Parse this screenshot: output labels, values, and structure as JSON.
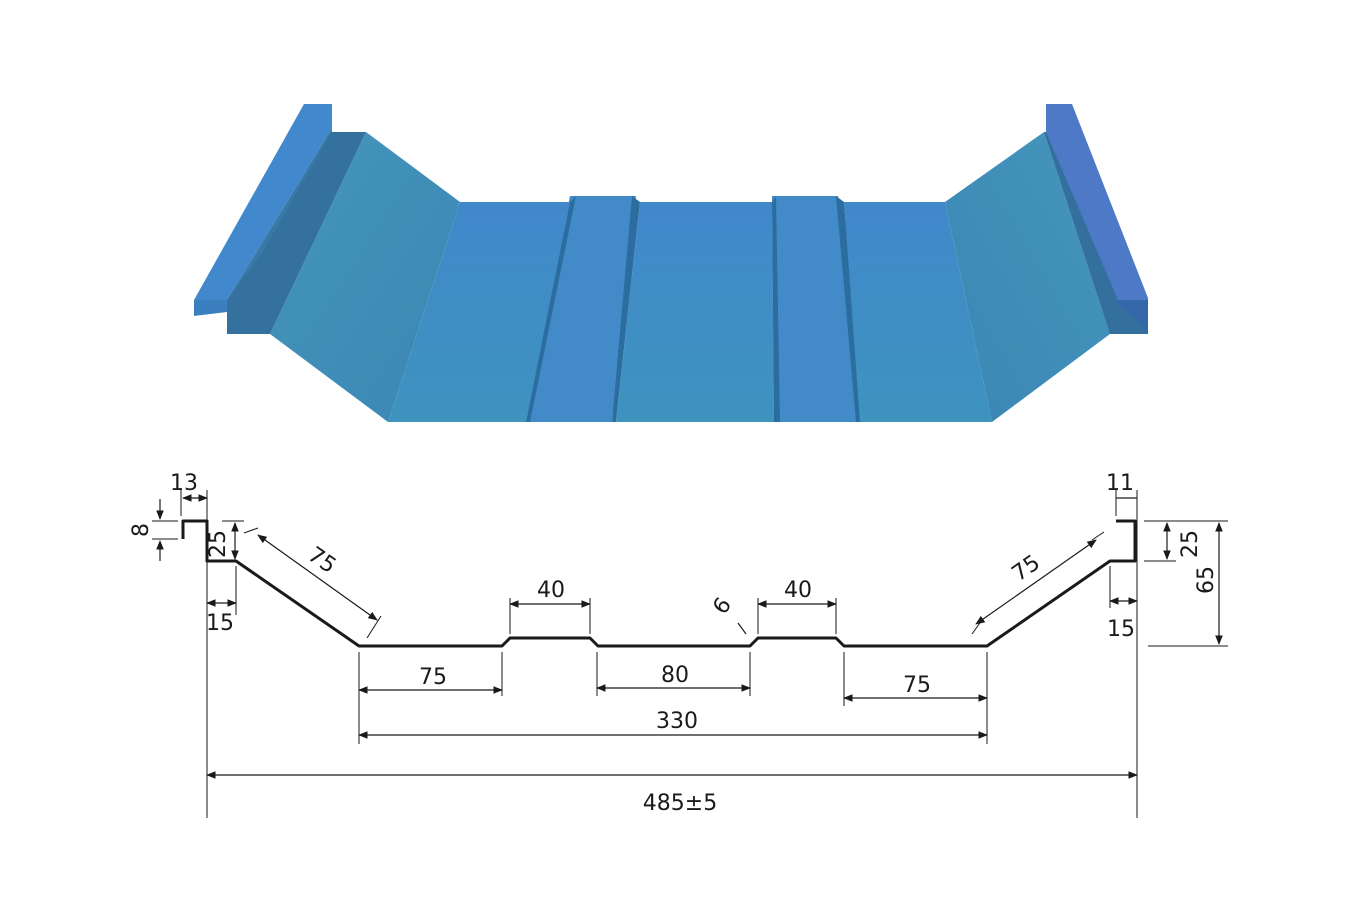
{
  "colors": {
    "panel_light": "#4189c9",
    "panel_mid": "#3f8fc0",
    "panel_dark": "#2d6a96",
    "line": "#1a1a1a",
    "background": "#ffffff"
  },
  "dimensions": {
    "top_lip_width": "13",
    "left_lip_height": "8",
    "left_rib_height": "25",
    "left_flange": "15",
    "left_slope": "75",
    "stiffener_top_left": "40",
    "stiffener_depth": "6",
    "stiffener_top_right": "40",
    "pan_left": "75",
    "pan_center": "80",
    "pan_right": "75",
    "pan_total": "330",
    "overall_width": "485±5",
    "right_lip_width": "11",
    "right_rib_height": "25",
    "right_total_height": "65",
    "right_flange": "15",
    "right_slope": "75"
  }
}
